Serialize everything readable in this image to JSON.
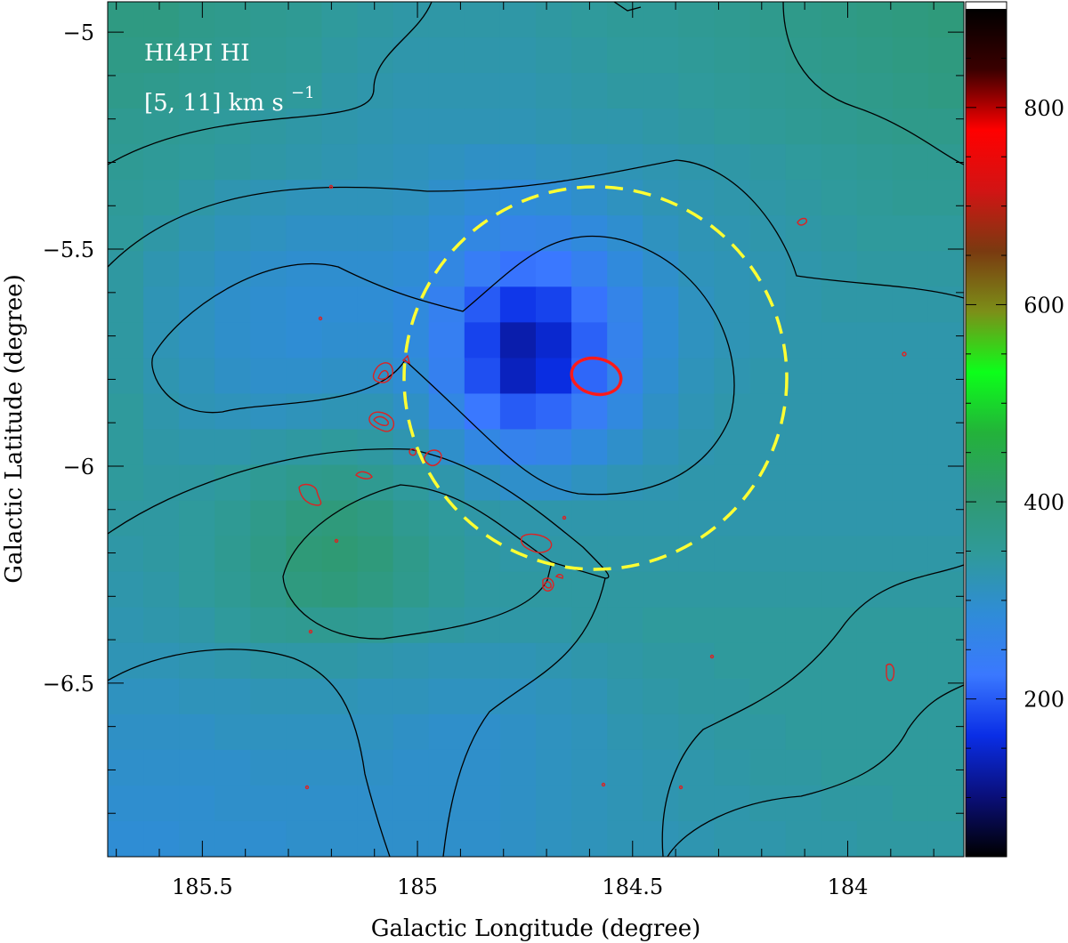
{
  "annotation": {
    "line1": "HI4PI HI",
    "line2_main": "[5, 11] km s",
    "line2_sup": "−1"
  },
  "chart_data": {
    "type": "heatmap",
    "title": "",
    "xlabel": "Galactic Longitude (degree)",
    "ylabel": "Galactic Latitude (degree)",
    "xlim": [
      185.72,
      183.73
    ],
    "ylim": [
      -6.9,
      -4.93
    ],
    "x_ticks": [
      {
        "value": 185.5,
        "label": "185.5"
      },
      {
        "value": 185.0,
        "label": "185"
      },
      {
        "value": 184.5,
        "label": "184.5"
      },
      {
        "value": 184.0,
        "label": "184"
      }
    ],
    "y_ticks": [
      {
        "value": -5.0,
        "label": "−5"
      },
      {
        "value": -5.5,
        "label": "−5.5"
      },
      {
        "value": -6.0,
        "label": "−6"
      },
      {
        "value": -6.5,
        "label": "−6.5"
      }
    ],
    "colorbar": {
      "range": [
        40,
        900
      ],
      "ticks": [
        {
          "value": 200,
          "label": "200"
        },
        {
          "value": 400,
          "label": "400"
        },
        {
          "value": 600,
          "label": "600"
        },
        {
          "value": 800,
          "label": "800"
        }
      ],
      "colormap": [
        "#000000",
        "#0a0f7a",
        "#0a2ee6",
        "#3a78ff",
        "#2f8cd8",
        "#2f9a9a",
        "#2f9a6e",
        "#23b23a",
        "#0cff1a",
        "#7c8f18",
        "#7a3a10",
        "#d21414",
        "#ff0000",
        "#3a0000",
        "#000000"
      ]
    },
    "pixel_grid": {
      "nx": 24,
      "ny": 24,
      "values": [
        [
          380,
          380,
          370,
          365,
          360,
          355,
          345,
          340,
          335,
          335,
          335,
          335,
          340,
          345,
          350,
          350,
          355,
          360,
          365,
          370,
          375,
          380,
          385,
          390
        ],
        [
          375,
          375,
          365,
          360,
          355,
          350,
          340,
          335,
          330,
          330,
          330,
          330,
          335,
          340,
          345,
          345,
          350,
          355,
          360,
          365,
          370,
          375,
          380,
          385
        ],
        [
          370,
          365,
          360,
          355,
          350,
          345,
          335,
          330,
          325,
          325,
          325,
          325,
          330,
          335,
          340,
          340,
          345,
          350,
          355,
          360,
          365,
          370,
          375,
          380
        ],
        [
          360,
          355,
          350,
          345,
          340,
          335,
          330,
          325,
          320,
          320,
          320,
          320,
          325,
          330,
          330,
          335,
          340,
          345,
          350,
          355,
          360,
          365,
          370,
          370
        ],
        [
          355,
          350,
          345,
          340,
          335,
          330,
          325,
          320,
          315,
          310,
          305,
          305,
          310,
          315,
          320,
          325,
          330,
          335,
          340,
          345,
          350,
          355,
          360,
          360
        ],
        [
          350,
          345,
          335,
          325,
          320,
          315,
          315,
          315,
          310,
          300,
          290,
          285,
          290,
          300,
          310,
          320,
          325,
          330,
          335,
          340,
          345,
          350,
          355,
          355
        ],
        [
          345,
          335,
          325,
          315,
          310,
          305,
          305,
          305,
          300,
          290,
          270,
          260,
          265,
          280,
          295,
          310,
          320,
          325,
          330,
          335,
          340,
          345,
          345,
          345
        ],
        [
          340,
          325,
          315,
          305,
          300,
          295,
          295,
          295,
          290,
          270,
          240,
          220,
          225,
          250,
          280,
          300,
          315,
          320,
          325,
          330,
          335,
          340,
          340,
          340
        ],
        [
          340,
          320,
          310,
          300,
          295,
          290,
          290,
          290,
          280,
          250,
          200,
          170,
          180,
          220,
          260,
          290,
          310,
          320,
          325,
          330,
          335,
          335,
          335,
          335
        ],
        [
          340,
          320,
          310,
          300,
          295,
          290,
          295,
          295,
          280,
          245,
          180,
          130,
          150,
          205,
          255,
          290,
          310,
          320,
          325,
          330,
          330,
          330,
          330,
          330
        ],
        [
          340,
          325,
          315,
          305,
          300,
          300,
          305,
          305,
          290,
          250,
          190,
          140,
          160,
          210,
          260,
          295,
          315,
          325,
          330,
          330,
          330,
          330,
          330,
          330
        ],
        [
          345,
          330,
          320,
          315,
          310,
          315,
          320,
          320,
          305,
          270,
          225,
          200,
          210,
          240,
          275,
          305,
          320,
          330,
          330,
          330,
          330,
          330,
          330,
          330
        ],
        [
          345,
          335,
          330,
          330,
          335,
          340,
          345,
          340,
          325,
          300,
          270,
          255,
          260,
          280,
          300,
          315,
          325,
          330,
          330,
          330,
          330,
          330,
          330,
          330
        ],
        [
          345,
          340,
          340,
          345,
          355,
          365,
          370,
          360,
          345,
          330,
          310,
          300,
          300,
          310,
          320,
          325,
          330,
          330,
          330,
          330,
          330,
          330,
          330,
          330
        ],
        [
          340,
          340,
          345,
          355,
          370,
          385,
          390,
          380,
          360,
          345,
          335,
          330,
          330,
          330,
          330,
          330,
          330,
          330,
          330,
          330,
          330,
          330,
          330,
          330
        ],
        [
          335,
          340,
          345,
          360,
          375,
          395,
          400,
          390,
          370,
          350,
          340,
          335,
          335,
          335,
          335,
          335,
          335,
          335,
          335,
          335,
          335,
          335,
          335,
          335
        ],
        [
          330,
          335,
          345,
          355,
          370,
          385,
          390,
          380,
          365,
          350,
          340,
          340,
          340,
          340,
          340,
          340,
          340,
          340,
          340,
          340,
          340,
          340,
          340,
          340
        ],
        [
          325,
          330,
          335,
          345,
          355,
          360,
          360,
          355,
          345,
          340,
          335,
          335,
          335,
          340,
          340,
          345,
          345,
          345,
          345,
          345,
          345,
          345,
          345,
          345
        ],
        [
          320,
          320,
          325,
          330,
          335,
          335,
          335,
          330,
          325,
          320,
          320,
          320,
          325,
          330,
          335,
          340,
          340,
          345,
          345,
          345,
          345,
          345,
          345,
          345
        ],
        [
          310,
          310,
          315,
          315,
          320,
          320,
          320,
          315,
          315,
          310,
          310,
          310,
          315,
          320,
          330,
          335,
          340,
          340,
          345,
          345,
          345,
          345,
          345,
          345
        ],
        [
          305,
          305,
          305,
          310,
          310,
          310,
          310,
          310,
          305,
          300,
          300,
          305,
          310,
          315,
          325,
          330,
          335,
          340,
          340,
          345,
          345,
          345,
          345,
          345
        ],
        [
          300,
          300,
          300,
          300,
          305,
          305,
          305,
          305,
          300,
          300,
          300,
          305,
          310,
          315,
          320,
          325,
          330,
          335,
          340,
          340,
          345,
          345,
          345,
          345
        ],
        [
          295,
          295,
          295,
          300,
          300,
          300,
          300,
          300,
          300,
          300,
          300,
          305,
          310,
          315,
          320,
          325,
          330,
          330,
          335,
          335,
          340,
          340,
          345,
          345
        ],
        [
          290,
          290,
          295,
          295,
          295,
          300,
          300,
          300,
          300,
          300,
          300,
          305,
          310,
          315,
          320,
          320,
          325,
          330,
          330,
          335,
          335,
          340,
          340,
          340
        ]
      ]
    }
  }
}
